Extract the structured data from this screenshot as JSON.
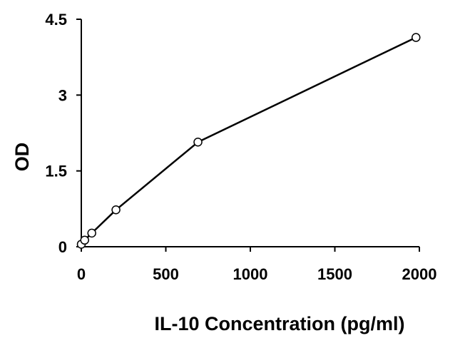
{
  "chart_data": {
    "type": "line",
    "title": "",
    "xlabel": "IL-10 Concentration (pg/ml)",
    "ylabel": "OD",
    "xlim": [
      0,
      2000
    ],
    "ylim": [
      0,
      4.5
    ],
    "x_ticks": [
      0,
      500,
      1000,
      1500,
      2000
    ],
    "y_ticks": [
      0,
      1.5,
      3,
      4.5
    ],
    "x_tick_labels": [
      "0",
      "500",
      "1000",
      "1500",
      "2000"
    ],
    "y_tick_labels": [
      "0",
      "1.5",
      "3",
      "4.5"
    ],
    "grid": false,
    "legend": "none",
    "series": [
      {
        "x": [
          0,
          20,
          62,
          205,
          690,
          1980
        ],
        "y": [
          0.05,
          0.13,
          0.27,
          0.73,
          2.07,
          4.14
        ],
        "marker": "open-circle",
        "color": "#000000"
      }
    ]
  }
}
